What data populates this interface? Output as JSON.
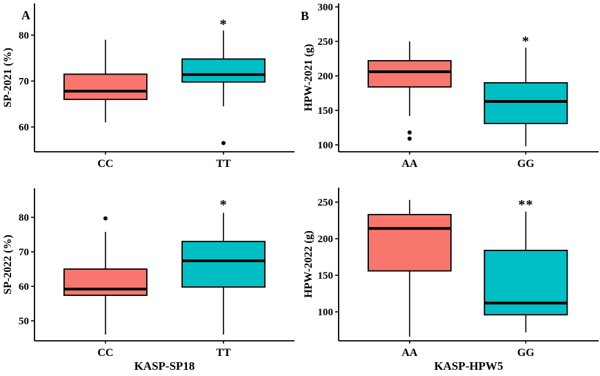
{
  "figure": {
    "panel_letters": {
      "a": "A",
      "b": "B"
    },
    "background": "#FFFFFF",
    "colors": {
      "first_genotype_box": "#F8766D",
      "second_genotype_box": "#00BFC4",
      "axis": "#000000"
    }
  },
  "chart_data": {
    "type": "boxplot",
    "layout": "2x2-grid",
    "legend": "none",
    "grid": "off",
    "panels": [
      {
        "panel": "A-top",
        "ylabel": "SP-2021 (%)",
        "xlabel": "",
        "yticks": [
          60,
          70,
          80
        ],
        "ylim": [
          54.6,
          86.9
        ],
        "categories": [
          "CC",
          "TT"
        ],
        "centers": [
          0.273,
          0.727
        ],
        "series": [
          {
            "category": "CC",
            "color": "#F8766D",
            "whisker_low": 61,
            "q1": 66,
            "median": 67.8,
            "q3": 71.5,
            "whisker_high": 79,
            "outliers": [],
            "significance": "",
            "sig_y": null
          },
          {
            "category": "TT",
            "color": "#00BFC4",
            "whisker_low": 64.5,
            "q1": 69.8,
            "median": 71.4,
            "q3": 74.8,
            "whisker_high": 81,
            "outliers": [
              56.5
            ],
            "significance": "*",
            "sig_y": 82.8
          }
        ]
      },
      {
        "panel": "B-top",
        "ylabel": "HPW-2021 (g)",
        "xlabel": "",
        "yticks": [
          100,
          150,
          200,
          250,
          300
        ],
        "ylim": [
          90,
          305
        ],
        "categories": [
          "AA",
          "GG"
        ],
        "centers": [
          0.273,
          0.72
        ],
        "series": [
          {
            "category": "AA",
            "color": "#F8766D",
            "whisker_low": 142,
            "q1": 184,
            "median": 206,
            "q3": 222,
            "whisker_high": 250,
            "outliers": [
              118,
              109
            ],
            "significance": "",
            "sig_y": null
          },
          {
            "category": "GG",
            "color": "#00BFC4",
            "whisker_low": 98,
            "q1": 131,
            "median": 163,
            "q3": 190,
            "whisker_high": 241,
            "outliers": [],
            "significance": "*",
            "sig_y": 253
          }
        ]
      },
      {
        "panel": "A-bottom",
        "ylabel": "SP-2022 (%)",
        "xlabel": "KASP-SP18",
        "yticks": [
          50,
          60,
          70,
          80
        ],
        "ylim": [
          44.2,
          88.4
        ],
        "categories": [
          "CC",
          "TT"
        ],
        "centers": [
          0.273,
          0.727
        ],
        "series": [
          {
            "category": "CC",
            "color": "#F8766D",
            "whisker_low": 46,
            "q1": 57.4,
            "median": 59.2,
            "q3": 65,
            "whisker_high": 75.8,
            "outliers": [
              79.7
            ],
            "significance": "",
            "sig_y": null
          },
          {
            "category": "TT",
            "color": "#00BFC4",
            "whisker_low": 46,
            "q1": 59.8,
            "median": 67.4,
            "q3": 73,
            "whisker_high": 81.3,
            "outliers": [],
            "significance": "*",
            "sig_y": 84.2
          }
        ]
      },
      {
        "panel": "B-bottom",
        "ylabel": "HPW-2022 (g)",
        "xlabel": "KASP-HPW5",
        "yticks": [
          100,
          150,
          200,
          250
        ],
        "ylim": [
          60.4,
          269.8
        ],
        "categories": [
          "AA",
          "GG"
        ],
        "centers": [
          0.273,
          0.72
        ],
        "series": [
          {
            "category": "AA",
            "color": "#F8766D",
            "whisker_low": 66,
            "q1": 156,
            "median": 214,
            "q3": 233,
            "whisker_high": 253,
            "outliers": [],
            "significance": "",
            "sig_y": null
          },
          {
            "category": "GG",
            "color": "#00BFC4",
            "whisker_low": 72,
            "q1": 96,
            "median": 112,
            "q3": 184,
            "whisker_high": 237,
            "outliers": [],
            "significance": "**",
            "sig_y": 249
          }
        ]
      }
    ]
  }
}
